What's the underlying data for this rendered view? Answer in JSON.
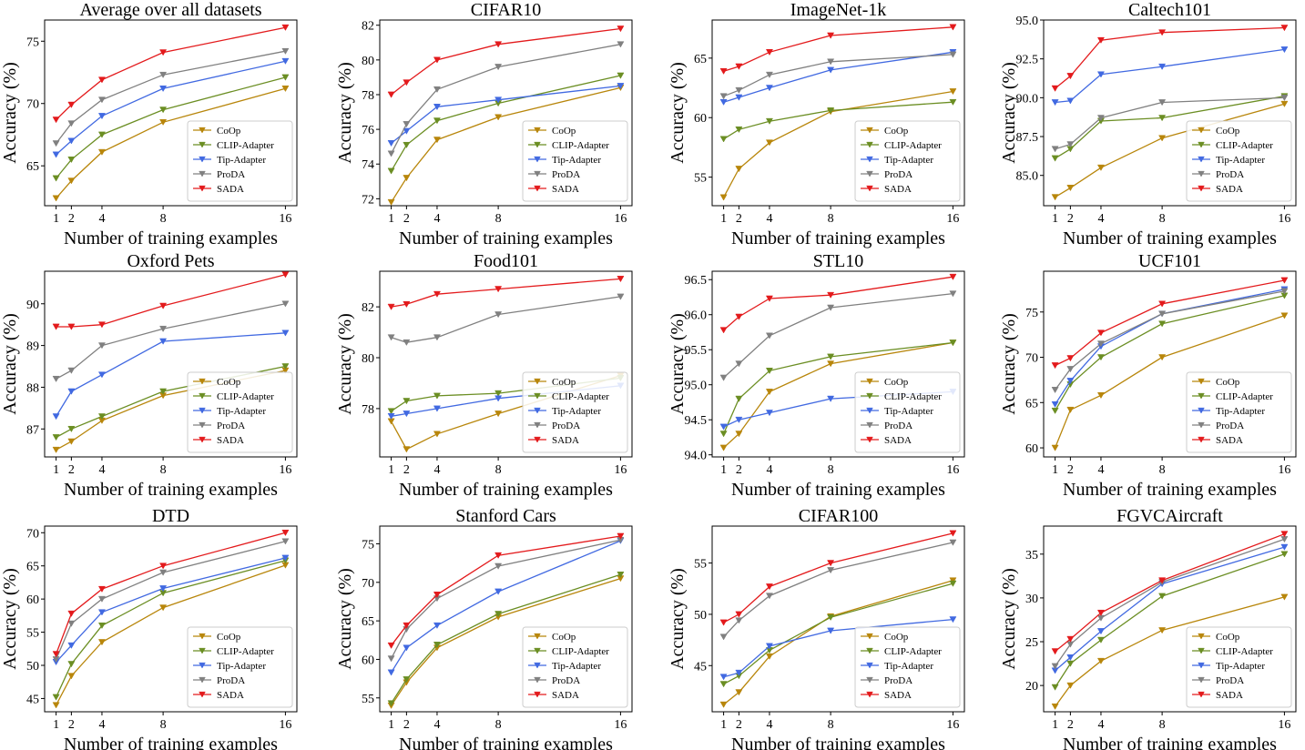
{
  "figure": {
    "x_ticks": [
      1,
      2,
      4,
      8,
      16
    ],
    "xlabel": "Number of training examples",
    "ylabel": "Accuracy (%)",
    "legend_position": "lower-right",
    "methods": [
      {
        "name": "CoOp",
        "color": "#B8860B"
      },
      {
        "name": "CLIP-Adapter",
        "color": "#6B8E23"
      },
      {
        "name": "Tip-Adapter",
        "color": "#4169E1"
      },
      {
        "name": "ProDA",
        "color": "#808080"
      },
      {
        "name": "SADA",
        "color": "#E31A1C"
      }
    ],
    "marker": "downward-triangle"
  },
  "chart_data": [
    {
      "type": "line",
      "title": "Average over all datasets",
      "xlabel": "Number of training examples",
      "ylabel": "Accuracy (%)",
      "x": [
        1,
        2,
        4,
        8,
        16
      ],
      "ylim": [
        61.8,
        76.7
      ],
      "yticks": [
        65,
        70,
        75
      ],
      "ytick_labels": [
        "65",
        "70",
        "75"
      ],
      "series": [
        {
          "name": "CoOp",
          "values": [
            62.4,
            63.8,
            66.1,
            68.5,
            71.2
          ]
        },
        {
          "name": "CLIP-Adapter",
          "values": [
            64.0,
            65.5,
            67.5,
            69.5,
            72.1
          ]
        },
        {
          "name": "Tip-Adapter",
          "values": [
            65.9,
            67.0,
            69.0,
            71.2,
            73.4
          ]
        },
        {
          "name": "ProDA",
          "values": [
            66.8,
            68.4,
            70.3,
            72.3,
            74.2
          ]
        },
        {
          "name": "SADA",
          "values": [
            68.7,
            69.9,
            71.9,
            74.1,
            76.1
          ]
        }
      ]
    },
    {
      "type": "line",
      "title": "CIFAR10",
      "xlabel": "Number of training examples",
      "ylabel": "Accuracy (%)",
      "x": [
        1,
        2,
        4,
        8,
        16
      ],
      "ylim": [
        71.6,
        82.3
      ],
      "yticks": [
        72,
        74,
        76,
        78,
        80,
        82
      ],
      "ytick_labels": [
        "72",
        "74",
        "76",
        "78",
        "80",
        "82"
      ],
      "series": [
        {
          "name": "CoOp",
          "values": [
            71.8,
            73.2,
            75.4,
            76.7,
            78.4
          ]
        },
        {
          "name": "CLIP-Adapter",
          "values": [
            73.6,
            75.1,
            76.5,
            77.5,
            79.1
          ]
        },
        {
          "name": "Tip-Adapter",
          "values": [
            75.2,
            75.9,
            77.3,
            77.7,
            78.5
          ]
        },
        {
          "name": "ProDA",
          "values": [
            74.6,
            76.3,
            78.3,
            79.6,
            80.9
          ]
        },
        {
          "name": "SADA",
          "values": [
            78.0,
            78.7,
            80.0,
            80.9,
            81.8
          ]
        }
      ]
    },
    {
      "type": "line",
      "title": "ImageNet-1k",
      "xlabel": "Number of training examples",
      "ylabel": "Accuracy (%)",
      "x": [
        1,
        2,
        4,
        8,
        16
      ],
      "ylim": [
        52.6,
        68.2
      ],
      "yticks": [
        55,
        60,
        65
      ],
      "ytick_labels": [
        "55",
        "60",
        "65"
      ],
      "series": [
        {
          "name": "CoOp",
          "values": [
            53.3,
            55.7,
            57.9,
            60.5,
            62.2
          ]
        },
        {
          "name": "CLIP-Adapter",
          "values": [
            58.2,
            59.0,
            59.7,
            60.6,
            61.3
          ]
        },
        {
          "name": "Tip-Adapter",
          "values": [
            61.3,
            61.7,
            62.5,
            64.0,
            65.5
          ]
        },
        {
          "name": "ProDA",
          "values": [
            61.8,
            62.3,
            63.6,
            64.7,
            65.3
          ]
        },
        {
          "name": "SADA",
          "values": [
            63.9,
            64.3,
            65.5,
            66.9,
            67.6
          ]
        }
      ]
    },
    {
      "type": "line",
      "title": "Caltech101",
      "xlabel": "Number of training examples",
      "ylabel": "Accuracy (%)",
      "x": [
        1,
        2,
        4,
        8,
        16
      ],
      "ylim": [
        83.05,
        95.0
      ],
      "yticks": [
        85.0,
        87.5,
        90.0,
        92.5,
        95.0
      ],
      "ytick_labels": [
        "85.0",
        "87.5",
        "90.0",
        "92.5",
        "95.0"
      ],
      "series": [
        {
          "name": "CoOp",
          "values": [
            83.6,
            84.2,
            85.5,
            87.4,
            89.6
          ]
        },
        {
          "name": "CLIP-Adapter",
          "values": [
            86.1,
            86.7,
            88.5,
            88.7,
            90.1
          ]
        },
        {
          "name": "Tip-Adapter",
          "values": [
            89.7,
            89.8,
            91.5,
            92.0,
            93.1
          ]
        },
        {
          "name": "ProDA",
          "values": [
            86.7,
            87.0,
            88.7,
            89.7,
            90.0
          ]
        },
        {
          "name": "SADA",
          "values": [
            90.6,
            91.4,
            93.7,
            94.2,
            94.5
          ]
        }
      ]
    },
    {
      "type": "line",
      "title": "Oxford Pets",
      "xlabel": "Number of training examples",
      "ylabel": "Accuracy (%)",
      "x": [
        1,
        2,
        4,
        8,
        16
      ],
      "ylim": [
        86.33,
        90.78
      ],
      "yticks": [
        87,
        88,
        89,
        90
      ],
      "ytick_labels": [
        "87",
        "88",
        "89",
        "90"
      ],
      "series": [
        {
          "name": "CoOp",
          "values": [
            86.5,
            86.7,
            87.2,
            87.8,
            88.4
          ]
        },
        {
          "name": "CLIP-Adapter",
          "values": [
            86.8,
            87.0,
            87.3,
            87.9,
            88.5
          ]
        },
        {
          "name": "Tip-Adapter",
          "values": [
            87.3,
            87.9,
            88.3,
            89.1,
            89.3
          ]
        },
        {
          "name": "ProDA",
          "values": [
            88.2,
            88.4,
            89.0,
            89.4,
            90.0
          ]
        },
        {
          "name": "SADA",
          "values": [
            89.45,
            89.45,
            89.5,
            89.95,
            90.7
          ]
        }
      ]
    },
    {
      "type": "line",
      "title": "Food101",
      "xlabel": "Number of training examples",
      "ylabel": "Accuracy (%)",
      "x": [
        1,
        2,
        4,
        8,
        16
      ],
      "ylim": [
        76.1,
        83.4
      ],
      "yticks": [
        78,
        80,
        82
      ],
      "ytick_labels": [
        "78",
        "80",
        "82"
      ],
      "series": [
        {
          "name": "CoOp",
          "values": [
            77.5,
            76.4,
            77.0,
            77.8,
            79.3
          ]
        },
        {
          "name": "CLIP-Adapter",
          "values": [
            77.9,
            78.3,
            78.5,
            78.6,
            79.2
          ]
        },
        {
          "name": "Tip-Adapter",
          "values": [
            77.7,
            77.8,
            78.0,
            78.4,
            78.9
          ]
        },
        {
          "name": "ProDA",
          "values": [
            80.8,
            80.6,
            80.8,
            81.7,
            82.4
          ]
        },
        {
          "name": "SADA",
          "values": [
            82.0,
            82.1,
            82.5,
            82.7,
            83.1
          ]
        }
      ]
    },
    {
      "type": "line",
      "title": "STL10",
      "xlabel": "Number of training examples",
      "ylabel": "Accuracy (%)",
      "x": [
        1,
        2,
        4,
        8,
        16
      ],
      "ylim": [
        93.97,
        96.62
      ],
      "yticks": [
        94.0,
        94.5,
        95.0,
        95.5,
        96.0,
        96.5
      ],
      "ytick_labels": [
        "94.0",
        "94.5",
        "95.0",
        "95.5",
        "96.0",
        "96.5"
      ],
      "series": [
        {
          "name": "CoOp",
          "values": [
            94.1,
            94.3,
            94.9,
            95.3,
            95.6
          ]
        },
        {
          "name": "CLIP-Adapter",
          "values": [
            94.3,
            94.8,
            95.2,
            95.4,
            95.6
          ]
        },
        {
          "name": "Tip-Adapter",
          "values": [
            94.4,
            94.5,
            94.6,
            94.8,
            94.9
          ]
        },
        {
          "name": "ProDA",
          "values": [
            95.1,
            95.3,
            95.7,
            96.1,
            96.3
          ]
        },
        {
          "name": "SADA",
          "values": [
            95.78,
            95.97,
            96.23,
            96.28,
            96.54
          ]
        }
      ]
    },
    {
      "type": "line",
      "title": "UCF101",
      "xlabel": "Number of training examples",
      "ylabel": "Accuracy (%)",
      "x": [
        1,
        2,
        4,
        8,
        16
      ],
      "ylim": [
        59.0,
        79.5
      ],
      "yticks": [
        60,
        65,
        70,
        75
      ],
      "ytick_labels": [
        "60",
        "65",
        "70",
        "75"
      ],
      "series": [
        {
          "name": "CoOp",
          "values": [
            60.0,
            64.2,
            65.8,
            70.0,
            74.6
          ]
        },
        {
          "name": "CLIP-Adapter",
          "values": [
            64.1,
            67.0,
            70.0,
            73.7,
            76.8
          ]
        },
        {
          "name": "Tip-Adapter",
          "values": [
            64.8,
            67.4,
            71.2,
            74.8,
            77.5
          ]
        },
        {
          "name": "ProDA",
          "values": [
            66.4,
            68.7,
            71.5,
            74.8,
            77.3
          ]
        },
        {
          "name": "SADA",
          "values": [
            69.1,
            69.9,
            72.7,
            75.9,
            78.5
          ]
        }
      ]
    },
    {
      "type": "line",
      "title": "DTD",
      "xlabel": "Number of training examples",
      "ylabel": "Accuracy (%)",
      "x": [
        1,
        2,
        4,
        8,
        16
      ],
      "ylim": [
        43.0,
        71.0
      ],
      "yticks": [
        45,
        50,
        55,
        60,
        65,
        70
      ],
      "ytick_labels": [
        "45",
        "50",
        "55",
        "60",
        "65",
        "70"
      ],
      "series": [
        {
          "name": "CoOp",
          "values": [
            44.0,
            48.4,
            53.5,
            58.7,
            65.1
          ]
        },
        {
          "name": "CLIP-Adapter",
          "values": [
            45.2,
            50.2,
            56.0,
            60.9,
            65.8
          ]
        },
        {
          "name": "Tip-Adapter",
          "values": [
            50.5,
            53.0,
            58.0,
            61.6,
            66.2
          ]
        },
        {
          "name": "ProDA",
          "values": [
            50.9,
            56.3,
            60.0,
            64.0,
            68.7
          ]
        },
        {
          "name": "SADA",
          "values": [
            51.7,
            57.8,
            61.5,
            65.0,
            70.0
          ]
        }
      ]
    },
    {
      "type": "line",
      "title": "Stanford Cars",
      "xlabel": "Number of training examples",
      "ylabel": "Accuracy (%)",
      "x": [
        1,
        2,
        4,
        8,
        16
      ],
      "ylim": [
        53.2,
        77.3
      ],
      "yticks": [
        55,
        60,
        65,
        70,
        75
      ],
      "ytick_labels": [
        "55",
        "60",
        "65",
        "70",
        "75"
      ],
      "series": [
        {
          "name": "CoOp",
          "values": [
            54.0,
            57.0,
            61.5,
            65.5,
            70.5
          ]
        },
        {
          "name": "CLIP-Adapter",
          "values": [
            54.3,
            57.4,
            61.9,
            65.9,
            71.0
          ]
        },
        {
          "name": "Tip-Adapter",
          "values": [
            58.3,
            61.5,
            64.4,
            68.8,
            75.4
          ]
        },
        {
          "name": "ProDA",
          "values": [
            60.1,
            63.9,
            67.9,
            72.1,
            75.5
          ]
        },
        {
          "name": "SADA",
          "values": [
            61.8,
            64.4,
            68.4,
            73.5,
            76.0
          ]
        }
      ]
    },
    {
      "type": "line",
      "title": "CIFAR100",
      "xlabel": "Number of training examples",
      "ylabel": "Accuracy (%)",
      "x": [
        1,
        2,
        4,
        8,
        16
      ],
      "ylim": [
        40.5,
        58.6
      ],
      "yticks": [
        45,
        50,
        55
      ],
      "ytick_labels": [
        "45",
        "50",
        "55"
      ],
      "series": [
        {
          "name": "CoOp",
          "values": [
            41.2,
            42.4,
            45.9,
            49.8,
            53.3
          ]
        },
        {
          "name": "CLIP-Adapter",
          "values": [
            43.2,
            44.0,
            46.5,
            49.7,
            53.0
          ]
        },
        {
          "name": "Tip-Adapter",
          "values": [
            43.9,
            44.3,
            46.9,
            48.4,
            49.5
          ]
        },
        {
          "name": "ProDA",
          "values": [
            47.8,
            49.4,
            51.8,
            54.3,
            57.0
          ]
        },
        {
          "name": "SADA",
          "values": [
            49.2,
            50.0,
            52.7,
            55.0,
            57.9
          ]
        }
      ]
    },
    {
      "type": "line",
      "title": "FGVCAircraft",
      "xlabel": "Number of training examples",
      "ylabel": "Accuracy (%)",
      "x": [
        1,
        2,
        4,
        8,
        16
      ],
      "ylim": [
        17.0,
        38.2
      ],
      "yticks": [
        20,
        25,
        30,
        35
      ],
      "ytick_labels": [
        "20",
        "25",
        "30",
        "35"
      ],
      "series": [
        {
          "name": "CoOp",
          "values": [
            17.6,
            20.0,
            22.8,
            26.3,
            30.1
          ]
        },
        {
          "name": "CLIP-Adapter",
          "values": [
            19.8,
            22.5,
            25.2,
            30.2,
            35.0
          ]
        },
        {
          "name": "Tip-Adapter",
          "values": [
            21.7,
            23.2,
            26.2,
            31.6,
            35.8
          ]
        },
        {
          "name": "ProDA",
          "values": [
            22.2,
            24.7,
            27.7,
            31.8,
            36.7
          ]
        },
        {
          "name": "SADA",
          "values": [
            23.9,
            25.3,
            28.3,
            32.0,
            37.3
          ]
        }
      ]
    }
  ]
}
